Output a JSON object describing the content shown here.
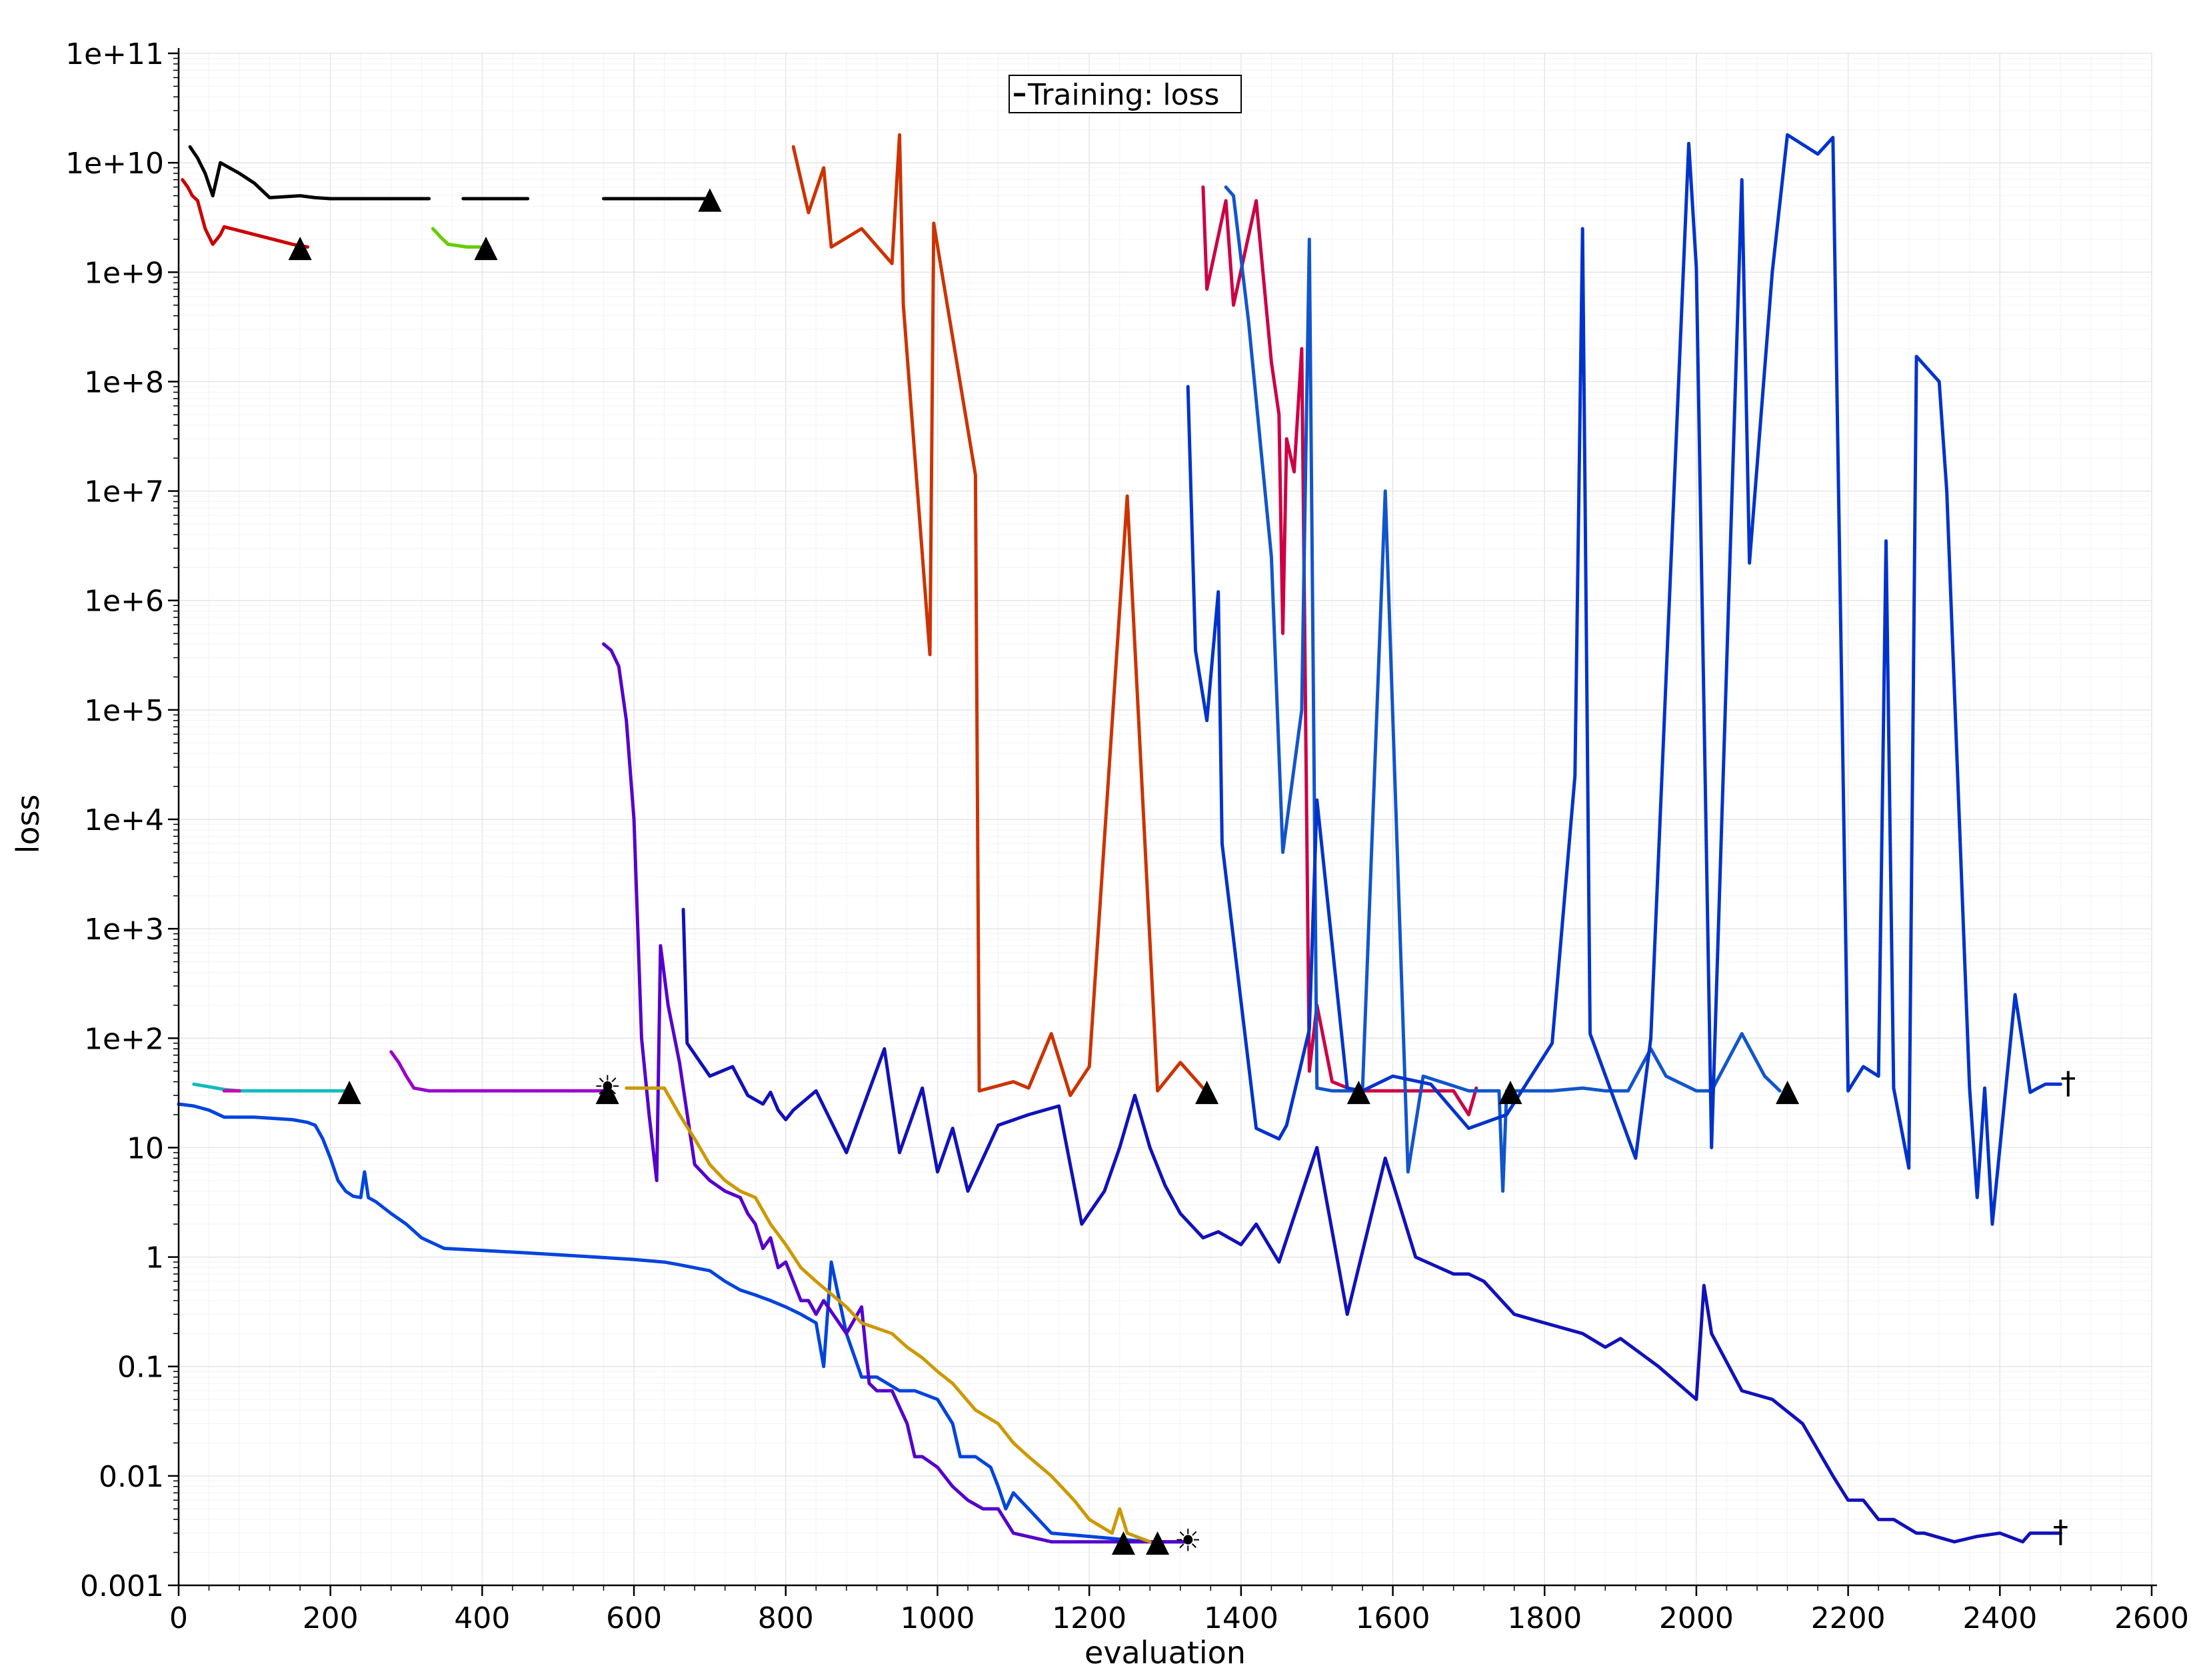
{
  "chart_data": {
    "type": "line",
    "title": "",
    "xlabel": "evaluation",
    "ylabel": "loss",
    "yscale": "log",
    "xlim": [
      0,
      2600
    ],
    "ylim": [
      0.001,
      100000000000
    ],
    "x_ticks": [
      "0",
      "200",
      "400",
      "600",
      "800",
      "1000",
      "1200",
      "1400",
      "1600",
      "1800",
      "2000",
      "2200",
      "2400",
      "2600"
    ],
    "y_ticks": [
      "0.001",
      "0.01",
      "0.1",
      "1",
      "10",
      "1e+2",
      "1e+3",
      "1e+4",
      "1e+5",
      "1e+6",
      "1e+7",
      "1e+8",
      "1e+9",
      "1e+10",
      "1e+11"
    ],
    "grid": true,
    "legend": [
      {
        "label": "Training: loss",
        "position": "top-center"
      }
    ],
    "series": [
      {
        "name": "black",
        "color": "#000000",
        "x": [
          15,
          25,
          35,
          45,
          55,
          80,
          100,
          120,
          160,
          180,
          200,
          330
        ],
        "y": [
          14000000000,
          11000000000,
          8000000000,
          5000000000,
          10000000000,
          8000000000,
          6500000000,
          4800000000,
          5000000000,
          4800000000,
          4700000000,
          4700000000
        ]
      },
      {
        "name": "black-2",
        "color": "#000000",
        "x": [
          375,
          460
        ],
        "y": [
          4700000000,
          4700000000
        ]
      },
      {
        "name": "black-3",
        "color": "#000000",
        "x": [
          560,
          700
        ],
        "y": [
          4700000000,
          4700000000
        ]
      },
      {
        "name": "red",
        "color": "#cc0000",
        "x": [
          5,
          12,
          18,
          25,
          35,
          45,
          55,
          60,
          150,
          170
        ],
        "y": [
          7000000000,
          6000000000,
          5000000000,
          4500000000,
          2500000000,
          1800000000,
          2200000000,
          2600000000,
          1800000000,
          1700000000
        ]
      },
      {
        "name": "green",
        "color": "#66cc00",
        "x": [
          335,
          345,
          355,
          380,
          410
        ],
        "y": [
          2500000000,
          2100000000,
          1800000000,
          1700000000,
          1700000000
        ]
      },
      {
        "name": "orange",
        "color": "#cc3300",
        "x": [
          810,
          830,
          850,
          860,
          900,
          940,
          950,
          955,
          990,
          995,
          1050,
          1055,
          1100,
          1120,
          1150,
          1175,
          1200,
          1250,
          1290,
          1320,
          1350
        ],
        "y": [
          14000000000,
          3500000000,
          9000000000,
          1700000000,
          2500000000,
          1200000000,
          18000000000,
          500000000,
          320000,
          2800000000,
          14000000,
          33,
          40,
          35,
          110,
          30,
          55,
          9000000,
          33,
          60,
          35
        ]
      },
      {
        "name": "crimson",
        "color": "#cc0044",
        "x": [
          1350,
          1355,
          1380,
          1390,
          1420,
          1440,
          1450,
          1455,
          1460,
          1470,
          1480,
          1490,
          1500,
          1520,
          1550,
          1590,
          1620,
          1680,
          1700,
          1710
        ],
        "y": [
          6000000000,
          700000000,
          4500000000,
          500000000,
          4500000000,
          150000000,
          50000000,
          500000,
          30000000,
          15000000,
          200000000,
          50,
          200,
          40,
          33,
          33,
          33,
          33,
          20,
          35
        ]
      },
      {
        "name": "mid-blue",
        "color": "#1155cc",
        "x": [
          1380,
          1390,
          1410,
          1440,
          1455,
          1480,
          1490,
          1500,
          1520,
          1560,
          1590,
          1620,
          1640,
          1700,
          1740,
          1745,
          1750,
          1760,
          1810,
          1850,
          1880,
          1910,
          1940,
          1960,
          2000,
          2020,
          2060,
          2090,
          2110
        ],
        "y": [
          6000000000,
          5000000000,
          350000000,
          2500000,
          5000,
          100000,
          2000000000,
          35,
          33,
          33,
          10000000,
          6,
          45,
          33,
          33,
          4,
          33,
          33,
          33,
          35,
          33,
          33,
          80,
          45,
          33,
          33,
          110,
          45,
          33
        ]
      },
      {
        "name": "dark-blue",
        "color": "#1111bb",
        "x": [
          665,
          670,
          700,
          730,
          750,
          770,
          780,
          790,
          800,
          810,
          840,
          880,
          930,
          950,
          980,
          1000,
          1020,
          1040,
          1080,
          1120,
          1160,
          1190,
          1220,
          1240,
          1260,
          1280,
          1300,
          1320,
          1350,
          1370,
          1400,
          1420,
          1450,
          1500,
          1540,
          1590,
          1630,
          1680,
          1700,
          1720,
          1760,
          1800,
          1850,
          1880,
          1900,
          1950,
          2000,
          2010,
          2020,
          2060,
          2100,
          2140,
          2180,
          2200,
          2220,
          2240,
          2260,
          2290,
          2300,
          2340,
          2370,
          2400,
          2430,
          2440,
          2480
        ],
        "y": [
          1500,
          90,
          45,
          55,
          30,
          25,
          32,
          22,
          18,
          22,
          33,
          9,
          80,
          9,
          35,
          6,
          15,
          4,
          16,
          20,
          24,
          2,
          4,
          10,
          30,
          10,
          4.5,
          2.5,
          1.5,
          1.7,
          1.3,
          2,
          0.9,
          10,
          0.3,
          8,
          1,
          0.7,
          0.7,
          0.6,
          0.3,
          0.25,
          0.2,
          0.15,
          0.18,
          0.1,
          0.05,
          0.55,
          0.2,
          0.06,
          0.05,
          0.03,
          0.01,
          0.006,
          0.006,
          0.004,
          0.004,
          0.003,
          0.003,
          0.0025,
          0.0028,
          0.003,
          0.0025,
          0.003,
          0.003
        ]
      },
      {
        "name": "royal-blue",
        "color": "#0033cc",
        "x": [
          1330,
          1340,
          1355,
          1370,
          1375,
          1420,
          1450,
          1460,
          1490,
          1500,
          1540,
          1560,
          1600,
          1650,
          1700,
          1750,
          1810,
          1840,
          1850,
          1860,
          1920,
          1940,
          1990,
          2000,
          2020,
          2060,
          2070,
          2100,
          2120,
          2160,
          2180,
          2200,
          2220,
          2240,
          2250,
          2260,
          2280,
          2290,
          2320,
          2330,
          2360,
          2370,
          2380,
          2390,
          2420,
          2440,
          2450,
          2460,
          2470,
          2480
        ],
        "y": [
          90000000,
          350000,
          80000,
          1200000,
          6000,
          15,
          12,
          16,
          120,
          15000,
          35,
          33,
          45,
          38,
          15,
          20,
          90,
          25000,
          2500000000,
          110,
          8,
          100,
          15000000000,
          1100000000,
          10,
          7000000000,
          2200000,
          1000000000,
          18000000000,
          12000000000,
          17000000000,
          33,
          55,
          45,
          3500000,
          35,
          6.5,
          170000000,
          100000000,
          10000000,
          35,
          3.5,
          35,
          2,
          250,
          32,
          35,
          38,
          38,
          38
        ]
      },
      {
        "name": "blue-low",
        "color": "#0044dd",
        "x": [
          0,
          20,
          40,
          60,
          100,
          150,
          170,
          180,
          190,
          200,
          210,
          220,
          230,
          240,
          245,
          250,
          260,
          280,
          300,
          320,
          350,
          400,
          450,
          500,
          550,
          600,
          640,
          660,
          700,
          720,
          740,
          760,
          780,
          800,
          820,
          840,
          850,
          860,
          880,
          900,
          920,
          950,
          970,
          1000,
          1020,
          1030,
          1050,
          1070,
          1080,
          1090,
          1100,
          1120,
          1150,
          1200,
          1250,
          1280,
          1300,
          1320,
          1330
        ],
        "y": [
          25,
          24,
          22,
          19,
          19,
          18,
          17,
          16,
          12,
          8,
          5,
          4,
          3.6,
          3.5,
          6,
          3.5,
          3.2,
          2.5,
          2,
          1.5,
          1.2,
          1.15,
          1.1,
          1.05,
          1,
          0.95,
          0.9,
          0.85,
          0.75,
          0.6,
          0.5,
          0.45,
          0.4,
          0.35,
          0.3,
          0.25,
          0.1,
          0.9,
          0.2,
          0.08,
          0.08,
          0.06,
          0.06,
          0.05,
          0.03,
          0.015,
          0.015,
          0.012,
          0.008,
          0.005,
          0.007,
          0.005,
          0.003,
          0.0028,
          0.0026,
          0.0025,
          0.0025,
          0.0025,
          0.0025
        ]
      },
      {
        "name": "violet",
        "color": "#5500cc",
        "x": [
          560,
          570,
          580,
          590,
          600,
          605,
          610,
          620,
          630,
          635,
          645,
          660,
          680,
          700,
          720,
          740,
          750,
          760,
          770,
          780,
          790,
          800,
          810,
          820,
          830,
          840,
          850,
          880,
          900,
          910,
          920,
          940,
          960,
          970,
          980,
          1000,
          1020,
          1040,
          1060,
          1080,
          1100,
          1150,
          1200,
          1250,
          1300,
          1330
        ],
        "y": [
          400000,
          350000,
          250000,
          80000,
          10000,
          1000,
          100,
          20,
          5,
          700,
          200,
          60,
          7,
          5,
          4,
          3.5,
          2.5,
          2,
          1.2,
          1.5,
          0.8,
          0.9,
          0.6,
          0.4,
          0.4,
          0.3,
          0.4,
          0.2,
          0.35,
          0.07,
          0.06,
          0.06,
          0.03,
          0.015,
          0.015,
          0.012,
          0.008,
          0.006,
          0.005,
          0.005,
          0.003,
          0.0025,
          0.0025,
          0.0025,
          0.0025,
          0.0025
        ]
      },
      {
        "name": "gold",
        "color": "#cc9900",
        "x": [
          590,
          640,
          660,
          680,
          700,
          720,
          740,
          760,
          780,
          800,
          820,
          840,
          880,
          900,
          940,
          960,
          980,
          1000,
          1020,
          1050,
          1080,
          1100,
          1120,
          1150,
          1180,
          1200,
          1230,
          1240,
          1250,
          1280
        ],
        "y": [
          35,
          35,
          20,
          12,
          7,
          5,
          4,
          3.5,
          2,
          1.3,
          0.8,
          0.6,
          0.35,
          0.25,
          0.2,
          0.15,
          0.12,
          0.09,
          0.07,
          0.04,
          0.03,
          0.02,
          0.015,
          0.01,
          0.006,
          0.004,
          0.003,
          0.005,
          0.003,
          0.0025
        ]
      },
      {
        "name": "teal",
        "color": "#11bbbb",
        "x": [
          20,
          40,
          60,
          80,
          150,
          220
        ],
        "y": [
          38,
          36,
          34,
          33,
          33,
          33
        ]
      },
      {
        "name": "magenta",
        "color": "#cc00aa",
        "x": [
          60,
          80
        ],
        "y": [
          33,
          33
        ]
      },
      {
        "name": "purple",
        "color": "#9900cc",
        "x": [
          280,
          290,
          300,
          310,
          330,
          350,
          400,
          450,
          500,
          560
        ],
        "y": [
          75,
          60,
          45,
          35,
          33,
          33,
          33,
          33,
          33,
          33
        ]
      }
    ],
    "markers": [
      {
        "symbol": "▲",
        "x": 160,
        "y": 1700000000
      },
      {
        "symbol": "▲",
        "x": 405,
        "y": 1700000000
      },
      {
        "symbol": "▲",
        "x": 700,
        "y": 4700000000
      },
      {
        "symbol": "▲",
        "x": 225,
        "y": 33
      },
      {
        "symbol": "▲",
        "x": 565,
        "y": 33
      },
      {
        "symbol": "☀",
        "x": 565,
        "y": 35
      },
      {
        "symbol": "▲",
        "x": 1355,
        "y": 33
      },
      {
        "symbol": "▲",
        "x": 1555,
        "y": 33
      },
      {
        "symbol": "▲",
        "x": 1755,
        "y": 33
      },
      {
        "symbol": "▲",
        "x": 2120,
        "y": 33
      },
      {
        "symbol": "▲",
        "x": 1245,
        "y": 0.0025
      },
      {
        "symbol": "▲",
        "x": 1290,
        "y": 0.0025
      },
      {
        "symbol": "☀",
        "x": 1330,
        "y": 0.0025
      },
      {
        "symbol": "†",
        "x": 2490,
        "y": 38
      },
      {
        "symbol": "†",
        "x": 2480,
        "y": 0.003
      }
    ]
  }
}
